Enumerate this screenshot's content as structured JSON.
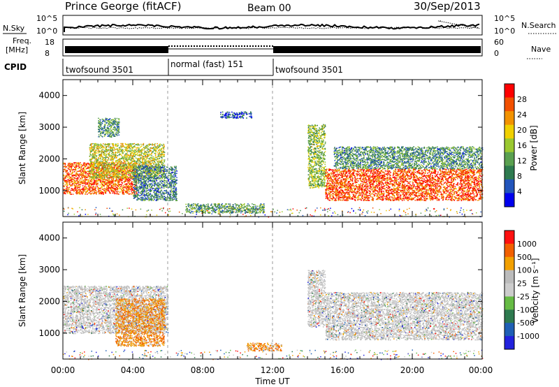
{
  "header": {
    "station": "Prince George (fitACF)",
    "beam": "Beam 00",
    "date": "30/Sep/2013"
  },
  "noise_panel": {
    "left_label": "N.Sky",
    "right_label": "N.Search",
    "left_ticks": [
      "10^5",
      "10^0"
    ],
    "right_ticks": [
      "10^5",
      "10^0"
    ]
  },
  "freq_panel": {
    "left_label_1": "Freq.",
    "left_label_2": "[MHz]",
    "right_label": "Nave",
    "left_ticks": [
      "18",
      "8"
    ],
    "right_ticks": [
      "60",
      "0"
    ]
  },
  "cpid": {
    "label": "CPID",
    "segments": [
      {
        "name": "twofsound 3501",
        "start_h": 0,
        "end_h": 6
      },
      {
        "name": "normal (fast) 151",
        "start_h": 6,
        "end_h": 12
      },
      {
        "name": "twofsound 3501",
        "start_h": 12,
        "end_h": 24
      }
    ]
  },
  "time_axis": {
    "label": "Time UT",
    "ticks": [
      "00:00",
      "04:00",
      "08:00",
      "12:00",
      "16:00",
      "20:00",
      "00:00"
    ]
  },
  "colors": {
    "power": [
      "#0000ee",
      "#2255bb",
      "#2e7a4f",
      "#5aa050",
      "#9ac830",
      "#f0d000",
      "#f29200",
      "#f25000",
      "#ff0000"
    ],
    "velocity": [
      "#2222dd",
      "#1f5fb5",
      "#2e7a4f",
      "#66bb44",
      "#cccccc",
      "#bbbbbb",
      "#f2a000",
      "#f26000",
      "#ff1010"
    ]
  },
  "chart_data": [
    {
      "type": "heatmap",
      "panel": "power",
      "ylabel": "Slant Range [km]",
      "xlabel": "",
      "xlim": [
        0,
        24
      ],
      "ylim": [
        180,
        4500
      ],
      "yticks": [
        "1000",
        "2000",
        "3000",
        "4000"
      ],
      "colorbar_label": "Power [dB]",
      "colorbar_ticks": [
        "28",
        "24",
        "20",
        "16",
        "12",
        "8",
        "4"
      ],
      "regions": [
        {
          "t0": 0.0,
          "t1": 4.2,
          "r0": 900,
          "r1": 1900,
          "level": 0.85
        },
        {
          "t0": 1.5,
          "t1": 5.8,
          "r0": 1400,
          "r1": 2500,
          "level": 0.55
        },
        {
          "t0": 2.0,
          "t1": 3.2,
          "r0": 2700,
          "r1": 3300,
          "level": 0.3
        },
        {
          "t0": 4.0,
          "t1": 6.5,
          "r0": 700,
          "r1": 1800,
          "level": 0.25
        },
        {
          "t0": 7.0,
          "t1": 11.5,
          "r0": 300,
          "r1": 600,
          "level": 0.35
        },
        {
          "t0": 9.0,
          "t1": 10.8,
          "r0": 3300,
          "r1": 3500,
          "level": 0.15
        },
        {
          "t0": 14.0,
          "t1": 15.0,
          "r0": 1100,
          "r1": 3100,
          "level": 0.45
        },
        {
          "t0": 15.0,
          "t1": 24.0,
          "r0": 700,
          "r1": 1700,
          "level": 0.9
        },
        {
          "t0": 15.5,
          "t1": 24.0,
          "r0": 1700,
          "r1": 2400,
          "level": 0.3
        }
      ]
    },
    {
      "type": "heatmap",
      "panel": "velocity",
      "ylabel": "Slant Range [km]",
      "xlabel": "Time UT",
      "xlim": [
        0,
        24
      ],
      "ylim": [
        180,
        4500
      ],
      "yticks": [
        "1000",
        "2000",
        "3000",
        "4000"
      ],
      "colorbar_label": "Velocity [m s⁻¹]",
      "colorbar_ticks": [
        "1000",
        "500",
        "100",
        "25",
        "-25",
        "-100",
        "-500",
        "-1000"
      ],
      "regions": [
        {
          "t0": 0.0,
          "t1": 6.0,
          "r0": 1000,
          "r1": 2500,
          "level": 0.5
        },
        {
          "t0": 3.0,
          "t1": 5.8,
          "r0": 600,
          "r1": 2100,
          "level": 0.22
        },
        {
          "t0": 10.5,
          "t1": 12.5,
          "r0": 450,
          "r1": 700,
          "level": 0.2
        },
        {
          "t0": 14.0,
          "t1": 15.0,
          "r0": 1200,
          "r1": 3000,
          "level": 0.5
        },
        {
          "t0": 15.0,
          "t1": 24.0,
          "r0": 800,
          "r1": 1900,
          "level": 0.5
        },
        {
          "t0": 15.0,
          "t1": 24.0,
          "r0": 1900,
          "r1": 2300,
          "level": 0.5
        }
      ]
    }
  ]
}
